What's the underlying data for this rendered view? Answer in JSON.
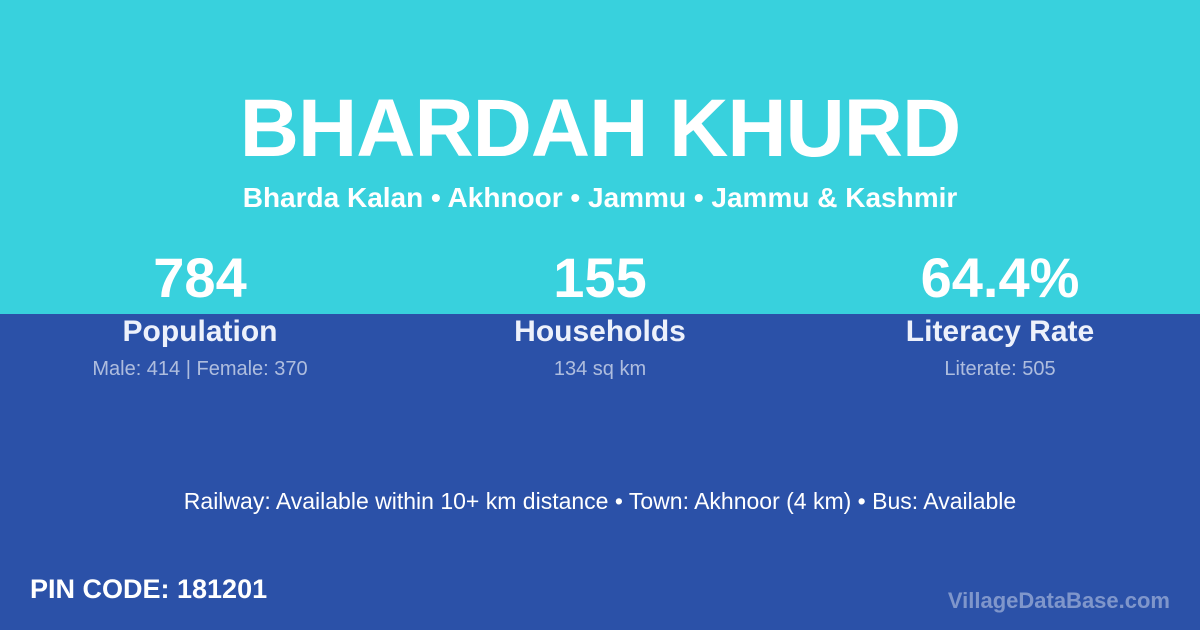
{
  "header": {
    "village_name": "BHARDAH KHURD",
    "location_line": "Bharda Kalan • Akhnoor • Jammu • Jammu & Kashmir"
  },
  "stats": [
    {
      "value": "784",
      "label": "Population",
      "detail": "Male: 414 | Female: 370"
    },
    {
      "value": "155",
      "label": "Households",
      "detail": "134 sq km"
    },
    {
      "value": "64.4%",
      "label": "Literacy Rate",
      "detail": "Literate: 505"
    }
  ],
  "transport": {
    "line": "Railway: Available within 10+ km distance  •  Town: Akhnoor (4 km)  •  Bus: Available"
  },
  "footer": {
    "pin_code": "PIN CODE: 181201",
    "watermark": "VillageDataBase.com"
  },
  "colors": {
    "background_top": "#38D1DD",
    "background_bottom": "#2B51A8",
    "primary_text": "#FFFFFF",
    "detail_text": "#A9B8DE"
  }
}
